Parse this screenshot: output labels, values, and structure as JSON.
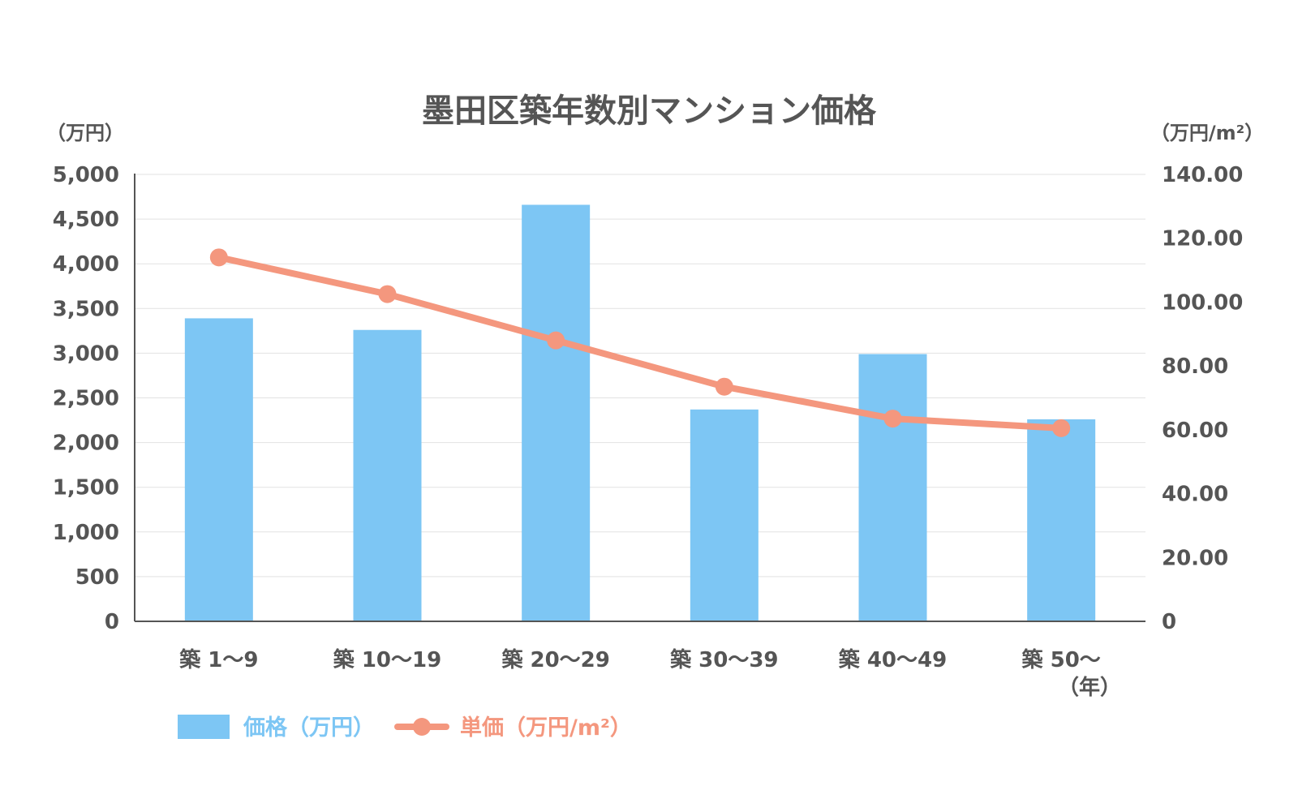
{
  "chart_data": {
    "type": "bar",
    "title": "墨田区築年数別マンション価格",
    "categories": [
      "築 1〜9",
      "築 10〜19",
      "築 20〜29",
      "築 30〜39",
      "築 40〜49",
      "築 50〜"
    ],
    "x_unit": "（年）",
    "series": [
      {
        "name": "価格（万円）",
        "type": "bar",
        "axis": "left",
        "color": "#7DC6F4",
        "values": [
          3390,
          3260,
          4660,
          2370,
          2990,
          2260
        ]
      },
      {
        "name": "単価（万円/m²）",
        "type": "line",
        "axis": "right",
        "color": "#F4977E",
        "values": [
          114.0,
          102.5,
          88.0,
          73.5,
          63.5,
          60.5
        ]
      }
    ],
    "y_left": {
      "unit_label": "（万円）",
      "min": 0,
      "max": 5000,
      "tick_labels": [
        "0",
        "500",
        "1,000",
        "1,500",
        "2,000",
        "2,500",
        "3,000",
        "3,500",
        "4,000",
        "4,500",
        "5,000"
      ]
    },
    "y_right": {
      "unit_label": "（万円/m²）",
      "min": 0,
      "max": 140,
      "tick_labels": [
        "0",
        "20.00",
        "40.00",
        "60.00",
        "80.00",
        "100.00",
        "120.00",
        "140.00"
      ]
    },
    "grid": true,
    "legend_position": "bottom-left"
  }
}
